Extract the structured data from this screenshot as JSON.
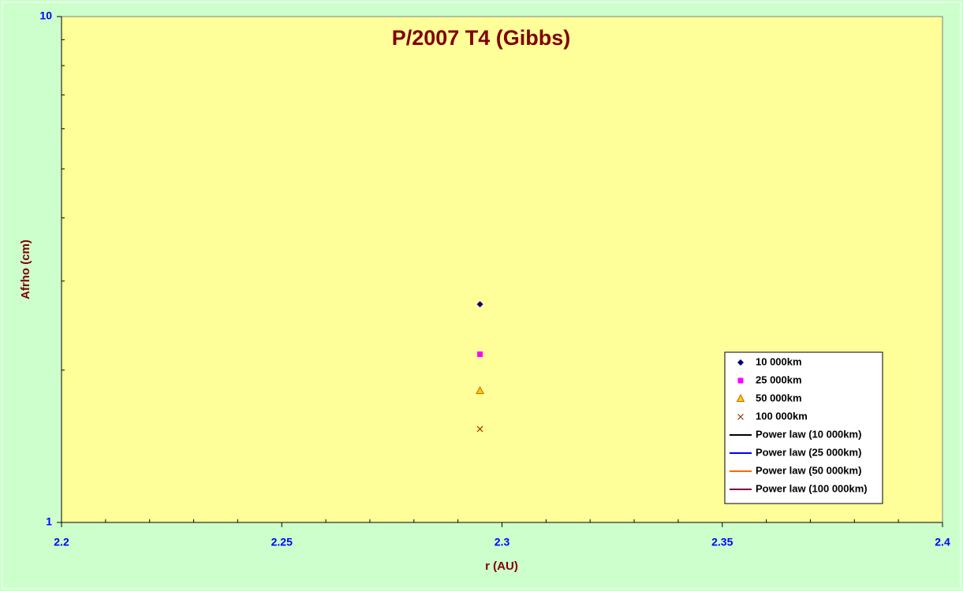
{
  "chart_data": {
    "type": "scatter",
    "title": "P/2007 T4 (Gibbs)",
    "x_label": "r (AU)",
    "y_label": "Afrho (cm)",
    "x": [
      2.295
    ],
    "series": [
      {
        "name": "10 000km",
        "color": "#000080",
        "marker": "diamond",
        "values": [
          2.7
        ]
      },
      {
        "name": "25 000km",
        "color": "#ff00ff",
        "marker": "square",
        "values": [
          2.15
        ]
      },
      {
        "name": "50 000km",
        "color": "#cc6600",
        "marker": "triangle",
        "values": [
          1.82
        ]
      },
      {
        "name": "100 000km",
        "color": "#993300",
        "marker": "cross",
        "values": [
          1.53
        ]
      },
      {
        "name": "Power law (10 000km)",
        "color": "#000000",
        "marker": "line",
        "values": [
          null
        ]
      },
      {
        "name": "Power law (25 000km)",
        "color": "#0000ff",
        "marker": "line",
        "values": [
          null
        ]
      },
      {
        "name": "Power law (50 000km)",
        "color": "#ff6600",
        "marker": "line",
        "values": [
          null
        ]
      },
      {
        "name": "Power law (100 000km)",
        "color": "#800040",
        "marker": "line",
        "values": [
          null
        ]
      }
    ],
    "xlim": [
      2.2,
      2.4
    ],
    "xticks": [
      2.2,
      2.25,
      2.3,
      2.35,
      2.4
    ],
    "xminorticks": [
      2.21,
      2.22,
      2.23,
      2.24,
      2.26,
      2.27,
      2.28,
      2.29,
      2.31,
      2.32,
      2.33,
      2.34,
      2.36,
      2.37,
      2.38,
      2.39
    ],
    "ylim": [
      1,
      10
    ],
    "yticks": [
      1,
      10
    ],
    "yminorticks": [
      2,
      3,
      4,
      5,
      6,
      7,
      8,
      9
    ],
    "y_log": true,
    "legend": "lower-right",
    "plot_background": "#ffff99"
  }
}
